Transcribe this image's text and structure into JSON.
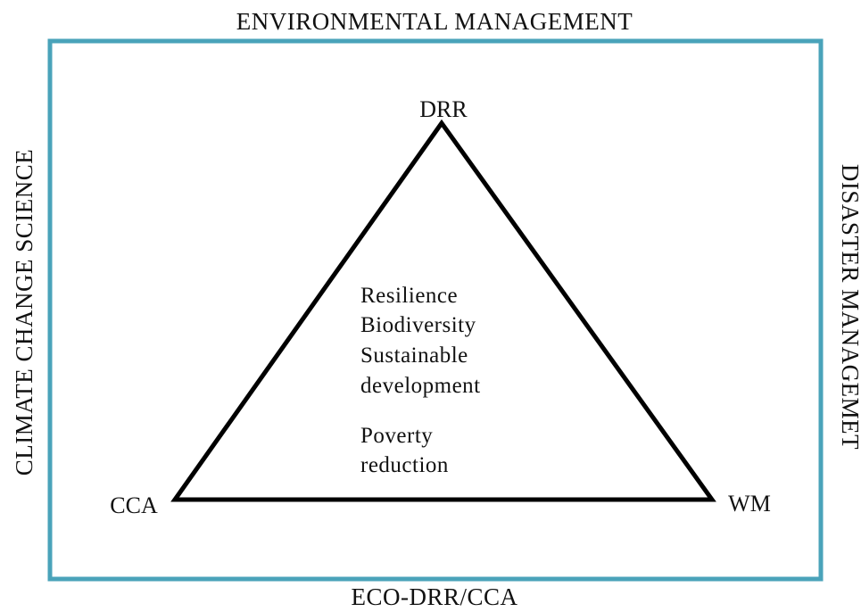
{
  "frame": {
    "top": "ENVIRONMENTAL MANAGEMENT",
    "left": "CLIMATE CHANGE SCIENCE",
    "right": "DISASTER MANAGEMET",
    "bottom": "ECO-DRR/CCA"
  },
  "triangle": {
    "top": "DRR",
    "left": "CCA",
    "right": "WM"
  },
  "center": {
    "lines": [
      "Resilience",
      "Biodiversity",
      "Sustainable",
      "development"
    ],
    "extra": [
      "Poverty",
      "reduction"
    ]
  }
}
